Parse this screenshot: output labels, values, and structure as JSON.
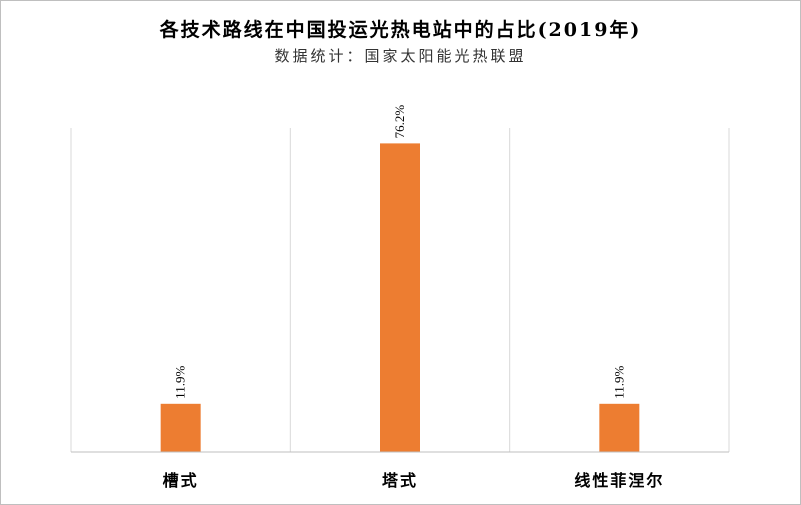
{
  "chart_data": {
    "type": "bar",
    "title": "各技术路线在中国投运光热电站中的占比(2019年)",
    "subtitle": "数据统计：国家太阳能光热联盟",
    "categories": [
      "槽式",
      "塔式",
      "线性菲涅尔"
    ],
    "values": [
      11.9,
      76.2,
      11.9
    ],
    "data_labels": [
      "11.9%",
      "76.2%",
      "11.9%"
    ],
    "unit": "%",
    "ylim": [
      0,
      80
    ],
    "grid": "vertical category separators",
    "legend": "none",
    "bar_color": "#ED7D31",
    "separator_color": "#d9d9d9",
    "axis_color": "#bfbfbf"
  }
}
